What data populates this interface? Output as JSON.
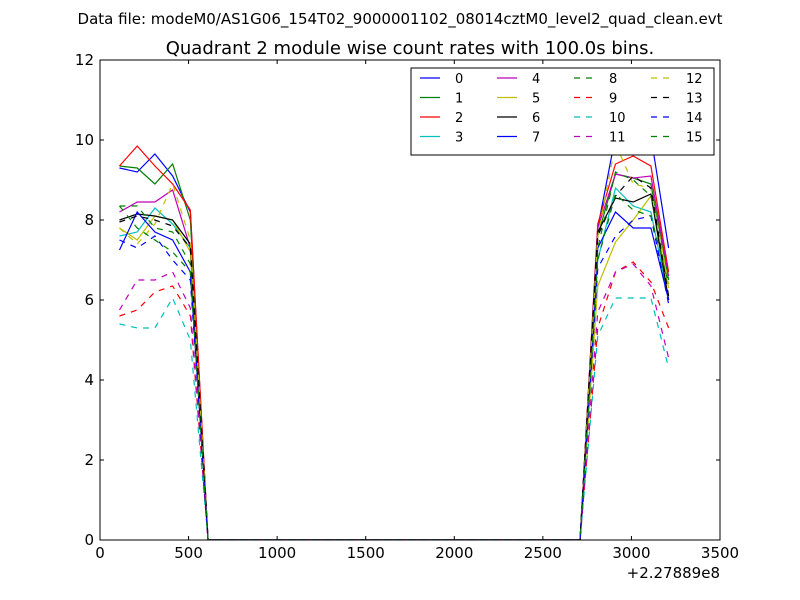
{
  "suptitle": "Data file: modeM0/AS1G06_154T02_9000001102_08014cztM0_level2_quad_clean.evt",
  "chart_data": {
    "type": "line",
    "title": "Quadrant 2 module wise count rates with 100.0s bins.",
    "xlabel": "",
    "ylabel": "",
    "xlim": [
      0,
      3500
    ],
    "ylim": [
      0,
      12
    ],
    "xticks": [
      0,
      500,
      1000,
      1500,
      2000,
      2500,
      3000,
      3500
    ],
    "yticks": [
      0,
      2,
      4,
      6,
      8,
      10,
      12
    ],
    "x_offset_label": "+2.27889e8",
    "grid": false,
    "legend_position": "top-right",
    "legend_columns": 4,
    "x": [
      110,
      210,
      310,
      410,
      510,
      610,
      710,
      810,
      910,
      1010,
      1110,
      1210,
      1310,
      1410,
      1510,
      1610,
      1710,
      1810,
      1910,
      2010,
      2110,
      2210,
      2310,
      2410,
      2510,
      2610,
      2710,
      2810,
      2910,
      3010,
      3110,
      3210
    ],
    "series": [
      {
        "name": "0",
        "color": "#0000ff",
        "dash": "solid",
        "values": [
          9.3,
          9.2,
          9.65,
          9.1,
          8.2,
          0,
          0,
          0,
          0,
          0,
          0,
          0,
          0,
          0,
          0,
          0,
          0,
          0,
          0,
          0,
          0,
          0,
          0,
          0,
          0,
          0,
          0,
          7.8,
          10.1,
          10.15,
          10.1,
          7.3
        ]
      },
      {
        "name": "1",
        "color": "#008000",
        "dash": "solid",
        "values": [
          9.35,
          9.3,
          8.9,
          9.4,
          8.0,
          0,
          0,
          0,
          0,
          0,
          0,
          0,
          0,
          0,
          0,
          0,
          0,
          0,
          0,
          0,
          0,
          0,
          0,
          0,
          0,
          0,
          0,
          7.6,
          9.15,
          9.05,
          8.9,
          6.5
        ]
      },
      {
        "name": "2",
        "color": "#ff0000",
        "dash": "solid",
        "values": [
          9.35,
          9.85,
          9.35,
          8.9,
          8.25,
          0,
          0,
          0,
          0,
          0,
          0,
          0,
          0,
          0,
          0,
          0,
          0,
          0,
          0,
          0,
          0,
          0,
          0,
          0,
          0,
          0,
          0,
          7.9,
          9.4,
          9.6,
          9.35,
          6.7
        ]
      },
      {
        "name": "3",
        "color": "#00bfbf",
        "dash": "solid",
        "values": [
          7.6,
          7.7,
          8.3,
          7.9,
          7.3,
          0,
          0,
          0,
          0,
          0,
          0,
          0,
          0,
          0,
          0,
          0,
          0,
          0,
          0,
          0,
          0,
          0,
          0,
          0,
          0,
          0,
          0,
          7.0,
          8.8,
          8.35,
          8.2,
          6.0
        ]
      },
      {
        "name": "4",
        "color": "#bf00bf",
        "dash": "solid",
        "values": [
          8.2,
          8.45,
          8.45,
          8.75,
          7.3,
          0,
          0,
          0,
          0,
          0,
          0,
          0,
          0,
          0,
          0,
          0,
          0,
          0,
          0,
          0,
          0,
          0,
          0,
          0,
          0,
          0,
          0,
          7.8,
          9.15,
          9.05,
          9.1,
          6.6
        ]
      },
      {
        "name": "5",
        "color": "#bfbf00",
        "dash": "solid",
        "values": [
          7.8,
          7.5,
          8.1,
          8.0,
          7.2,
          0,
          0,
          0,
          0,
          0,
          0,
          0,
          0,
          0,
          0,
          0,
          0,
          0,
          0,
          0,
          0,
          0,
          0,
          0,
          0,
          0,
          0,
          6.35,
          7.45,
          8.0,
          8.6,
          6.3
        ]
      },
      {
        "name": "6",
        "color": "#000000",
        "dash": "solid",
        "values": [
          8.0,
          8.15,
          8.1,
          8.0,
          7.4,
          0,
          0,
          0,
          0,
          0,
          0,
          0,
          0,
          0,
          0,
          0,
          0,
          0,
          0,
          0,
          0,
          0,
          0,
          0,
          0,
          0,
          0,
          7.7,
          8.55,
          8.45,
          8.65,
          6.0
        ]
      },
      {
        "name": "7",
        "color": "#0000ff",
        "dash": "solid",
        "values": [
          7.25,
          8.2,
          7.7,
          7.5,
          6.7,
          0,
          0,
          0,
          0,
          0,
          0,
          0,
          0,
          0,
          0,
          0,
          0,
          0,
          0,
          0,
          0,
          0,
          0,
          0,
          0,
          0,
          0,
          7.3,
          8.2,
          7.8,
          7.8,
          6.0
        ]
      },
      {
        "name": "8",
        "color": "#008000",
        "dash": "dashed",
        "values": [
          8.35,
          8.35,
          7.8,
          7.7,
          6.9,
          0,
          0,
          0,
          0,
          0,
          0,
          0,
          0,
          0,
          0,
          0,
          0,
          0,
          0,
          0,
          0,
          0,
          0,
          0,
          0,
          0,
          0,
          7.3,
          9.2,
          9.0,
          8.6,
          6.6
        ]
      },
      {
        "name": "9",
        "color": "#ff0000",
        "dash": "dashed",
        "values": [
          5.6,
          5.75,
          6.2,
          6.35,
          5.6,
          0,
          0,
          0,
          0,
          0,
          0,
          0,
          0,
          0,
          0,
          0,
          0,
          0,
          0,
          0,
          0,
          0,
          0,
          0,
          0,
          0,
          0,
          5.3,
          6.7,
          6.95,
          6.45,
          5.3
        ]
      },
      {
        "name": "10",
        "color": "#00bfbf",
        "dash": "dashed",
        "values": [
          5.4,
          5.3,
          5.3,
          6.05,
          5.0,
          0,
          0,
          0,
          0,
          0,
          0,
          0,
          0,
          0,
          0,
          0,
          0,
          0,
          0,
          0,
          0,
          0,
          0,
          0,
          0,
          0,
          0,
          5.1,
          6.05,
          6.05,
          6.05,
          4.3
        ]
      },
      {
        "name": "11",
        "color": "#bf00bf",
        "dash": "dashed",
        "values": [
          5.75,
          6.5,
          6.5,
          6.7,
          5.8,
          0,
          0,
          0,
          0,
          0,
          0,
          0,
          0,
          0,
          0,
          0,
          0,
          0,
          0,
          0,
          0,
          0,
          0,
          0,
          0,
          0,
          0,
          5.7,
          6.7,
          6.9,
          6.35,
          4.55
        ]
      },
      {
        "name": "12",
        "color": "#bfbf00",
        "dash": "dashed",
        "values": [
          7.8,
          7.4,
          7.9,
          8.9,
          7.5,
          0,
          0,
          0,
          0,
          0,
          0,
          0,
          0,
          0,
          0,
          0,
          0,
          0,
          0,
          0,
          0,
          0,
          0,
          0,
          0,
          0,
          0,
          7.6,
          9.9,
          8.9,
          8.8,
          6.4
        ]
      },
      {
        "name": "13",
        "color": "#000000",
        "dash": "dashed",
        "values": [
          7.95,
          8.1,
          8.0,
          7.85,
          7.3,
          0,
          0,
          0,
          0,
          0,
          0,
          0,
          0,
          0,
          0,
          0,
          0,
          0,
          0,
          0,
          0,
          0,
          0,
          0,
          0,
          0,
          0,
          7.6,
          8.6,
          9.1,
          8.8,
          6.1
        ]
      },
      {
        "name": "14",
        "color": "#0000ff",
        "dash": "dashed",
        "values": [
          7.5,
          7.3,
          7.6,
          7.0,
          6.5,
          0,
          0,
          0,
          0,
          0,
          0,
          0,
          0,
          0,
          0,
          0,
          0,
          0,
          0,
          0,
          0,
          0,
          0,
          0,
          0,
          0,
          0,
          6.8,
          7.6,
          8.0,
          8.1,
          5.9
        ]
      },
      {
        "name": "15",
        "color": "#008000",
        "dash": "dashed",
        "values": [
          8.35,
          7.8,
          7.5,
          7.2,
          6.7,
          0,
          0,
          0,
          0,
          0,
          0,
          0,
          0,
          0,
          0,
          0,
          0,
          0,
          0,
          0,
          0,
          0,
          0,
          0,
          0,
          0,
          0,
          7.0,
          8.65,
          8.25,
          8.1,
          6.4
        ]
      }
    ]
  }
}
